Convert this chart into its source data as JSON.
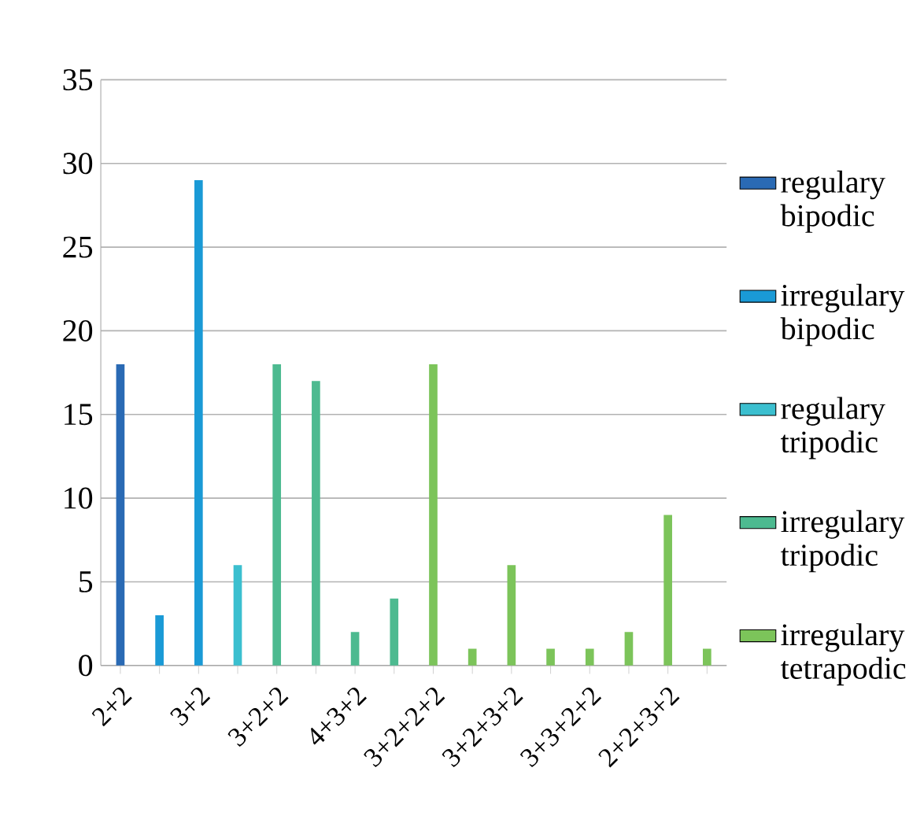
{
  "chart_data": {
    "type": "bar",
    "categories": [
      "2+2",
      null,
      "3+2",
      null,
      "3+2+2",
      null,
      "4+3+2",
      null,
      "3+2+2+2",
      null,
      "3+2+3+2",
      null,
      "3+3+2+2",
      null,
      "2+2+3+2",
      null
    ],
    "series": [
      {
        "name": "regulary bipodic",
        "color": "#2a6ab4",
        "values": [
          18,
          null,
          null,
          null,
          null,
          null,
          null,
          null,
          null,
          null,
          null,
          null,
          null,
          null,
          null,
          null
        ]
      },
      {
        "name": "irregulary bipodic",
        "color": "#1a9ad6",
        "values": [
          null,
          3,
          29,
          null,
          null,
          null,
          null,
          null,
          null,
          null,
          null,
          null,
          null,
          null,
          null,
          null
        ]
      },
      {
        "name": "regulary tripodic",
        "color": "#3bbfcf",
        "values": [
          null,
          null,
          null,
          6,
          null,
          null,
          null,
          null,
          null,
          null,
          null,
          null,
          null,
          null,
          null,
          null
        ]
      },
      {
        "name": "irregulary tripodic",
        "color": "#4dba90",
        "values": [
          null,
          null,
          null,
          null,
          18,
          17,
          2,
          4,
          null,
          null,
          null,
          null,
          null,
          null,
          null,
          null
        ]
      },
      {
        "name": "irregulary tetrapodic",
        "color": "#7cc45a",
        "values": [
          null,
          null,
          null,
          null,
          null,
          null,
          null,
          null,
          18,
          1,
          6,
          1,
          1,
          2,
          9,
          1
        ]
      }
    ],
    "ylim": [
      0,
      35
    ],
    "yticks": [
      0,
      5,
      10,
      15,
      20,
      25,
      30,
      35
    ],
    "grid": "y",
    "legend": "right"
  }
}
